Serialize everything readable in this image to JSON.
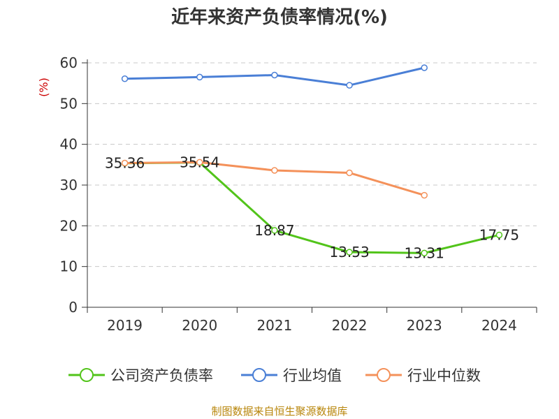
{
  "chart_data": {
    "type": "line",
    "title": "近年来资产负债率情况(%)",
    "ylabel": "(%)",
    "xlabel": "",
    "categories": [
      "2019",
      "2020",
      "2021",
      "2022",
      "2023",
      "2024"
    ],
    "yticks": [
      0,
      10,
      20,
      30,
      40,
      50,
      60
    ],
    "ylim": [
      0,
      60
    ],
    "grid": true,
    "legend_position": "bottom",
    "series": [
      {
        "name": "公司资产负债率",
        "color": "#52c41a",
        "values": [
          35.36,
          35.54,
          18.87,
          13.53,
          13.31,
          17.75
        ],
        "labels": [
          "35.36",
          "35.54",
          "18.87",
          "13.53",
          "13.31",
          "17.75"
        ]
      },
      {
        "name": "行业均值",
        "color": "#4a7fd6",
        "values": [
          56.1,
          56.5,
          57.0,
          54.5,
          58.8,
          null
        ]
      },
      {
        "name": "行业中位数",
        "color": "#f4915a",
        "values": [
          35.4,
          35.6,
          33.6,
          33.0,
          27.5,
          null
        ]
      }
    ]
  },
  "footer": {
    "source": "制图数据来自恒生聚源数据库"
  }
}
